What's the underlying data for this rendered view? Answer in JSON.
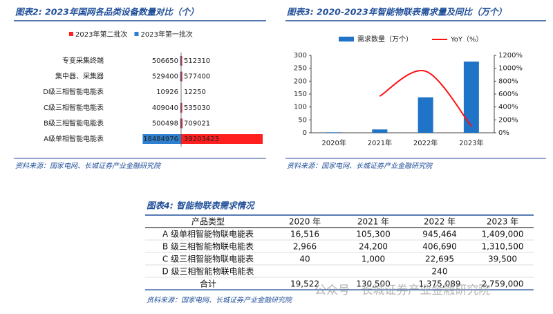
{
  "chart_data": [
    {
      "type": "diverging-bar",
      "title": "图表2: 2023年国网各品类设备数量对比（个）",
      "categories": [
        "专变采集终端",
        "集中器、采集器",
        "D级三相智能电能表",
        "C级三相智能电能表",
        "B级三相智能电能表",
        "A级单相智能电能表"
      ],
      "series": [
        {
          "name": "2023年第二批次",
          "color": "#ff1f1f",
          "side": "right",
          "values": [
            512310,
            577400,
            12250,
            535030,
            709021,
            39203423
          ]
        },
        {
          "name": "2023年第一批次",
          "color": "#2f7fd0",
          "side": "left",
          "values": [
            506650,
            529400,
            10926,
            409040,
            500498,
            18484976
          ]
        }
      ],
      "source": "资料来源：国家电网、长城证券产业金融研究院"
    },
    {
      "type": "bar-line",
      "title": "图表3: 2020-2023年智能物联表需求量及同比（万个）",
      "categories": [
        "2020年",
        "2021年",
        "2022年",
        "2023年"
      ],
      "series": [
        {
          "name": "需求数量（万个）",
          "color": "#1f74c8",
          "kind": "bar",
          "values": [
            1.95,
            13.05,
            137.5,
            275.9
          ]
        },
        {
          "name": "YoY（%）",
          "color": "#ff1010",
          "kind": "line",
          "axis": "y2",
          "values": [
            null,
            568,
            954,
            101
          ]
        }
      ],
      "ylim": [
        0,
        300
      ],
      "yticks": [
        0,
        50,
        100,
        150,
        200,
        250,
        300
      ],
      "y2lim": [
        0,
        1200
      ],
      "y2ticks": [
        {
          "value": 0,
          "label": "0%"
        },
        {
          "value": 200,
          "label": "200%"
        },
        {
          "value": 400,
          "label": "400%"
        },
        {
          "value": 600,
          "label": "600%"
        },
        {
          "value": 800,
          "label": "800%"
        },
        {
          "value": 1000,
          "label": "1000%"
        },
        {
          "value": 1200,
          "label": "1200%"
        }
      ],
      "source": "资料来源：国家电网、长城证券产业金融研究院"
    }
  ],
  "table": {
    "title": "图表4: 智能物联表需求情况",
    "header": [
      "产品类型",
      "2020 年",
      "2021 年",
      "2022 年",
      "2023 年"
    ],
    "rows": [
      [
        "A 级单相智能物联电能表",
        "16,516",
        "105,300",
        "945,464",
        "1,409,000"
      ],
      [
        "B 级三相智能物联电能表",
        "2,966",
        "24,200",
        "406,690",
        "1,310,500"
      ],
      [
        "C 级三相智能物联电能表",
        "40",
        "1,000",
        "22,695",
        "39,500"
      ],
      [
        "D 级三相智能物联电能表",
        null,
        null,
        "240",
        null
      ],
      [
        "合计",
        "19,522",
        "130,500",
        "1,375,089",
        "2,759,000"
      ]
    ],
    "source": "资料来源：国家电网、长城证券产业金融研究院"
  },
  "watermark": "公众号 · 长城证券产业金融研究院"
}
